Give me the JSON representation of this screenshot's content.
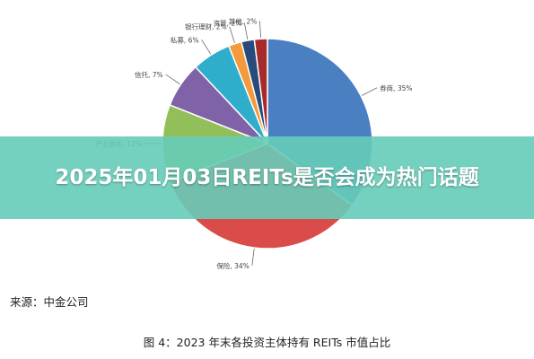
{
  "banner": {
    "title": "2025年01月03日REITs是否会成为热门话题"
  },
  "source": "来源：中金公司",
  "caption": "图 4：2023 年末各投资主体持有 REITs 市值占比",
  "chart_data": {
    "type": "pie",
    "title": "",
    "slices": [
      {
        "name": "券商",
        "value": 35,
        "label": "券商, 35%",
        "color": "#4a7fc1"
      },
      {
        "name": "保险",
        "value": 34,
        "label": "保险, 34%",
        "color": "#d94c4a"
      },
      {
        "name": "产业资本",
        "value": 12,
        "label": "产业资本, 12%",
        "color": "#93bf5a"
      },
      {
        "name": "信托",
        "value": 7,
        "label": "信托, 7%",
        "color": "#7f62a8"
      },
      {
        "name": "私募",
        "value": 6,
        "label": "私募, 6%",
        "color": "#2eaecb"
      },
      {
        "name": "银行理财",
        "value": 2,
        "label": "银行理财, 2%",
        "color": "#f29a3c"
      },
      {
        "name": "资管",
        "value": 2,
        "label": "资管, 2%",
        "color": "#274b7a"
      },
      {
        "name": "其他",
        "value": 2,
        "label": "其他, 2%",
        "color": "#a62b2b"
      }
    ]
  }
}
